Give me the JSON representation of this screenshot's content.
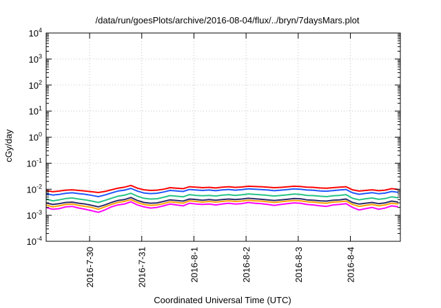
{
  "chart_data": {
    "type": "line",
    "title": "/data/run/goesPlots/archive/2016-08-04/flux/../bryn/7daysMars.plot",
    "xlabel": "Coordinated Universal Time (UTC)",
    "ylabel": "cGy/day",
    "yscale": "log",
    "ylim": [
      0.0001,
      10000
    ],
    "xlim": [
      "2016-07-29 04:00",
      "2016-08-04 23:00"
    ],
    "grid": true,
    "y_ticks": [
      {
        "base": "10",
        "exp": "-4",
        "value": 0.0001
      },
      {
        "base": "10",
        "exp": "-3",
        "value": 0.001
      },
      {
        "base": "10",
        "exp": "-2",
        "value": 0.01
      },
      {
        "base": "10",
        "exp": "-1",
        "value": 0.1
      },
      {
        "base": "10",
        "exp": "0",
        "value": 1
      },
      {
        "base": "10",
        "exp": "1",
        "value": 10
      },
      {
        "base": "10",
        "exp": "2",
        "value": 100
      },
      {
        "base": "10",
        "exp": "3",
        "value": 1000
      },
      {
        "base": "10",
        "exp": "4",
        "value": 10000
      }
    ],
    "x_ticks": [
      {
        "label": "2016-7-30",
        "value": "2016-07-30 00:00"
      },
      {
        "label": "2016-7-31",
        "value": "2016-07-31 00:00"
      },
      {
        "label": "2016-8-1",
        "value": "2016-08-01 00:00"
      },
      {
        "label": "2016-8-2",
        "value": "2016-08-02 00:00"
      },
      {
        "label": "2016-8-3",
        "value": "2016-08-03 00:00"
      },
      {
        "label": "2016-8-4",
        "value": "2016-08-04 00:00"
      }
    ],
    "x": [
      "2016-07-29 04:00",
      "2016-07-29 07:00",
      "2016-07-29 10:00",
      "2016-07-29 13:00",
      "2016-07-29 16:00",
      "2016-07-29 19:00",
      "2016-07-29 22:00",
      "2016-07-30 01:00",
      "2016-07-30 04:00",
      "2016-07-30 07:00",
      "2016-07-30 10:00",
      "2016-07-30 13:00",
      "2016-07-30 16:00",
      "2016-07-30 19:00",
      "2016-07-30 22:00",
      "2016-07-31 01:00",
      "2016-07-31 04:00",
      "2016-07-31 07:00",
      "2016-07-31 10:00",
      "2016-07-31 13:00",
      "2016-07-31 16:00",
      "2016-07-31 19:00",
      "2016-07-31 22:00",
      "2016-08-01 01:00",
      "2016-08-01 04:00",
      "2016-08-01 07:00",
      "2016-08-01 10:00",
      "2016-08-01 13:00",
      "2016-08-01 16:00",
      "2016-08-01 19:00",
      "2016-08-01 22:00",
      "2016-08-02 01:00",
      "2016-08-02 04:00",
      "2016-08-02 07:00",
      "2016-08-02 10:00",
      "2016-08-02 13:00",
      "2016-08-02 16:00",
      "2016-08-02 19:00",
      "2016-08-02 22:00",
      "2016-08-03 01:00",
      "2016-08-03 04:00",
      "2016-08-03 07:00",
      "2016-08-03 10:00",
      "2016-08-03 13:00",
      "2016-08-03 16:00",
      "2016-08-03 19:00",
      "2016-08-03 22:00",
      "2016-08-04 01:00",
      "2016-08-04 04:00",
      "2016-08-04 07:00",
      "2016-08-04 10:00",
      "2016-08-04 13:00",
      "2016-08-04 16:00",
      "2016-08-04 19:00",
      "2016-08-04 22:00"
    ],
    "series": [
      {
        "color": "#ff0000",
        "values": [
          0.009,
          0.008,
          0.0085,
          0.0092,
          0.0095,
          0.009,
          0.0085,
          0.008,
          0.0075,
          0.0082,
          0.0095,
          0.011,
          0.012,
          0.014,
          0.011,
          0.0095,
          0.009,
          0.0092,
          0.01,
          0.0115,
          0.011,
          0.0105,
          0.0125,
          0.012,
          0.0115,
          0.0118,
          0.0112,
          0.012,
          0.0125,
          0.0118,
          0.0122,
          0.013,
          0.0128,
          0.0125,
          0.012,
          0.0115,
          0.0118,
          0.0124,
          0.013,
          0.0128,
          0.012,
          0.0118,
          0.0112,
          0.011,
          0.0115,
          0.012,
          0.0125,
          0.0095,
          0.0085,
          0.009,
          0.0095,
          0.0088,
          0.0092,
          0.0105,
          0.0098
        ]
      },
      {
        "color": "#1f56ff",
        "values": [
          0.0068,
          0.006,
          0.0063,
          0.007,
          0.0073,
          0.0068,
          0.0064,
          0.0058,
          0.0052,
          0.006,
          0.0072,
          0.0085,
          0.0092,
          0.0108,
          0.0085,
          0.0072,
          0.0068,
          0.007,
          0.0078,
          0.009,
          0.0086,
          0.0082,
          0.0098,
          0.0093,
          0.009,
          0.0093,
          0.0088,
          0.0094,
          0.0098,
          0.0092,
          0.0096,
          0.0104,
          0.01,
          0.0097,
          0.0093,
          0.0088,
          0.0092,
          0.0097,
          0.0103,
          0.01,
          0.0093,
          0.0091,
          0.0086,
          0.0084,
          0.0089,
          0.0093,
          0.0098,
          0.0073,
          0.0064,
          0.0069,
          0.0074,
          0.0067,
          0.0071,
          0.0082,
          0.0076
        ]
      },
      {
        "color": "#22c285",
        "values": [
          0.0042,
          0.0036,
          0.0039,
          0.0044,
          0.0046,
          0.0042,
          0.0039,
          0.0035,
          0.0031,
          0.0037,
          0.0045,
          0.0054,
          0.0059,
          0.007,
          0.0054,
          0.0045,
          0.0042,
          0.0043,
          0.0049,
          0.0057,
          0.0054,
          0.0051,
          0.0062,
          0.0058,
          0.0056,
          0.0058,
          0.0055,
          0.0059,
          0.0062,
          0.0058,
          0.0061,
          0.0066,
          0.0063,
          0.0061,
          0.0058,
          0.0055,
          0.0058,
          0.0061,
          0.0065,
          0.0063,
          0.0058,
          0.0057,
          0.0054,
          0.0052,
          0.0056,
          0.0058,
          0.0062,
          0.0045,
          0.0039,
          0.0043,
          0.0046,
          0.0041,
          0.0044,
          0.0051,
          0.0047
        ]
      },
      {
        "color": "#2a2a6a",
        "values": [
          0.003,
          0.0026,
          0.0028,
          0.0031,
          0.0032,
          0.0029,
          0.0027,
          0.0024,
          0.0021,
          0.0025,
          0.0031,
          0.0037,
          0.004,
          0.0048,
          0.0037,
          0.0031,
          0.0029,
          0.003,
          0.0034,
          0.0039,
          0.0037,
          0.0035,
          0.0042,
          0.004,
          0.0038,
          0.004,
          0.0038,
          0.004,
          0.0042,
          0.004,
          0.0042,
          0.0045,
          0.0043,
          0.0041,
          0.0039,
          0.0037,
          0.0039,
          0.0041,
          0.0044,
          0.0043,
          0.0039,
          0.0038,
          0.0036,
          0.0035,
          0.0038,
          0.0039,
          0.0042,
          0.0031,
          0.0027,
          0.0029,
          0.0031,
          0.0028,
          0.003,
          0.0035,
          0.0032
        ]
      },
      {
        "color": "#ffa000",
        "values": [
          0.0025,
          0.0021,
          0.0023,
          0.0026,
          0.0027,
          0.0024,
          0.0022,
          0.002,
          0.0017,
          0.0021,
          0.0026,
          0.0031,
          0.0034,
          0.004,
          0.0031,
          0.0026,
          0.0024,
          0.0025,
          0.0028,
          0.0033,
          0.0031,
          0.0029,
          0.0036,
          0.0034,
          0.0032,
          0.0034,
          0.0032,
          0.0034,
          0.0036,
          0.0034,
          0.0035,
          0.0038,
          0.0036,
          0.0035,
          0.0033,
          0.0031,
          0.0033,
          0.0035,
          0.0037,
          0.0036,
          0.0033,
          0.0032,
          0.003,
          0.0029,
          0.0032,
          0.0033,
          0.0035,
          0.0026,
          0.0022,
          0.0024,
          0.0026,
          0.0023,
          0.0025,
          0.0029,
          0.0027
        ]
      },
      {
        "color": "#ff00ff",
        "values": [
          0.002,
          0.0017,
          0.0018,
          0.0021,
          0.0022,
          0.0019,
          0.0017,
          0.0015,
          0.0013,
          0.0016,
          0.0021,
          0.0025,
          0.0027,
          0.0033,
          0.0025,
          0.0021,
          0.0019,
          0.002,
          0.0023,
          0.0027,
          0.0025,
          0.0023,
          0.0029,
          0.0027,
          0.0026,
          0.0027,
          0.0025,
          0.0027,
          0.0029,
          0.0027,
          0.0028,
          0.0031,
          0.0029,
          0.0028,
          0.0026,
          0.0024,
          0.0026,
          0.0028,
          0.003,
          0.0029,
          0.0026,
          0.0025,
          0.0023,
          0.0022,
          0.0025,
          0.0026,
          0.0028,
          0.002,
          0.0016,
          0.0018,
          0.002,
          0.0017,
          0.0019,
          0.0023,
          0.0021
        ]
      }
    ]
  }
}
